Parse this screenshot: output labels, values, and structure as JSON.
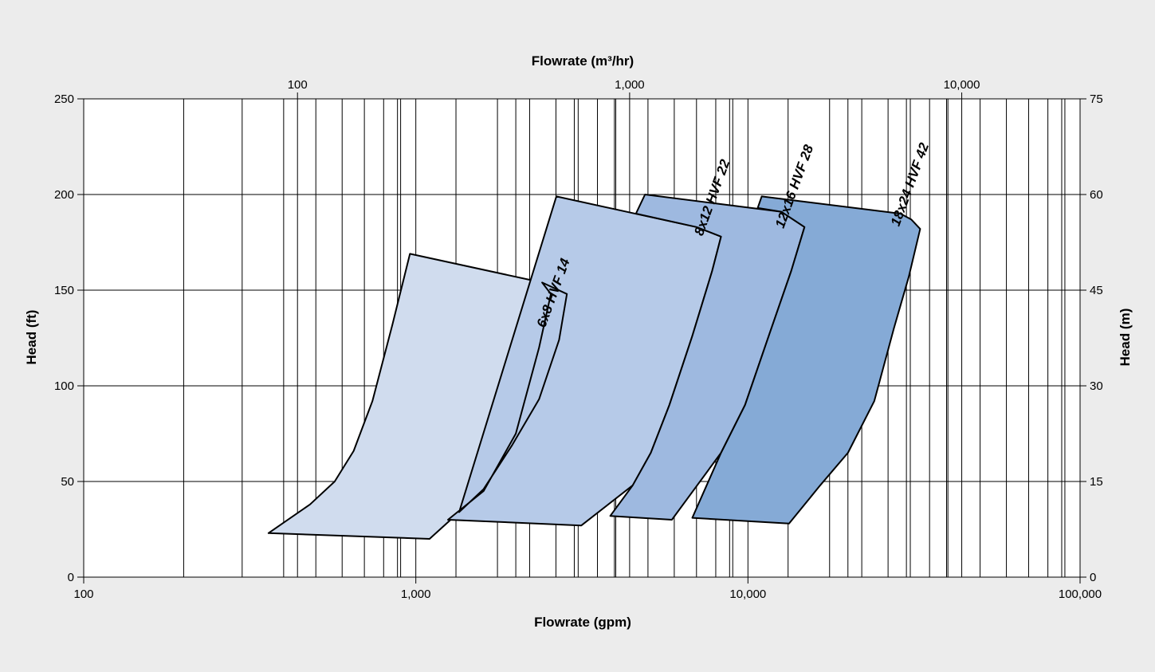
{
  "colors": {
    "background": "#ececec",
    "plot_background": "#ffffff",
    "grid": "#000000",
    "series_fills": [
      "#d0dcee",
      "#b6cae8",
      "#9eb9e0",
      "#85aad6"
    ]
  },
  "chart_data": {
    "type": "area",
    "xscale": "log",
    "xlim": [
      100,
      100000
    ],
    "ylim": [
      0,
      250
    ],
    "grid": true,
    "xlabel": "Flowrate (gpm)",
    "x2label": "Flowrate (m³/hr)",
    "ylabel": "Head (ft)",
    "y2label": "Head (m)",
    "xticks": [
      {
        "value": 100,
        "label": "100"
      },
      {
        "value": 1000,
        "label": "1,000"
      },
      {
        "value": 10000,
        "label": "10,000"
      },
      {
        "value": 100000,
        "label": "100,000"
      }
    ],
    "x2ticks": [
      {
        "value": 100,
        "label": "100"
      },
      {
        "value": 1000,
        "label": "1,000"
      },
      {
        "value": 10000,
        "label": "10,000"
      }
    ],
    "yticks": [
      {
        "value": 0,
        "label": "0"
      },
      {
        "value": 50,
        "label": "50"
      },
      {
        "value": 100,
        "label": "100"
      },
      {
        "value": 150,
        "label": "150"
      },
      {
        "value": 200,
        "label": "200"
      },
      {
        "value": 250,
        "label": "250"
      }
    ],
    "y2ticks": [
      {
        "value": 0,
        "label": "0"
      },
      {
        "value": 15,
        "label": "15"
      },
      {
        "value": 30,
        "label": "30"
      },
      {
        "value": 45,
        "label": "45"
      },
      {
        "value": 60,
        "label": "60"
      },
      {
        "value": 75,
        "label": "75"
      }
    ],
    "series": [
      {
        "name": "6x8 HVF 14",
        "label_at": {
          "x": 2450,
          "y": 130
        },
        "outline": [
          [
            960,
            169
          ],
          [
            2400,
            154
          ],
          [
            2850,
            148
          ],
          [
            2700,
            124
          ],
          [
            2350,
            93
          ],
          [
            1950,
            69
          ],
          [
            1600,
            46
          ],
          [
            1350,
            34
          ],
          [
            1100,
            20
          ],
          [
            360,
            23
          ],
          [
            480,
            38
          ],
          [
            570,
            50
          ],
          [
            650,
            66
          ],
          [
            740,
            92
          ],
          [
            850,
            132
          ]
        ]
      },
      {
        "name": "8x12 HVF 22",
        "label_at": {
          "x": 7300,
          "y": 178
        },
        "outline": [
          [
            2650,
            199
          ],
          [
            7000,
            183
          ],
          [
            8300,
            178
          ],
          [
            7800,
            160
          ],
          [
            6800,
            126
          ],
          [
            5800,
            90
          ],
          [
            5100,
            65
          ],
          [
            4500,
            48
          ],
          [
            3150,
            27
          ],
          [
            1250,
            30
          ],
          [
            1600,
            45
          ],
          [
            2000,
            75
          ],
          [
            2350,
            120
          ],
          [
            2550,
            148
          ],
          [
            2400,
            154
          ],
          [
            2850,
            148
          ],
          [
            2700,
            124
          ],
          [
            2350,
            93
          ],
          [
            1950,
            69
          ],
          [
            1600,
            46
          ],
          [
            1350,
            34
          ]
        ]
      },
      {
        "name": "12x16 HVF 28",
        "label_at": {
          "x": 12800,
          "y": 182
        },
        "outline": [
          [
            4900,
            200
          ],
          [
            12600,
            191
          ],
          [
            14800,
            183
          ],
          [
            13500,
            160
          ],
          [
            11600,
            127
          ],
          [
            9800,
            90
          ],
          [
            8300,
            65
          ],
          [
            5900,
            30
          ],
          [
            3850,
            32
          ],
          [
            4500,
            48
          ],
          [
            5100,
            65
          ],
          [
            5800,
            90
          ],
          [
            6800,
            126
          ],
          [
            7800,
            160
          ],
          [
            8300,
            178
          ],
          [
            7000,
            183
          ],
          [
            4600,
            190
          ]
        ]
      },
      {
        "name": "18x24 HVF 42",
        "label_at": {
          "x": 28500,
          "y": 183
        },
        "outline": [
          [
            11000,
            199
          ],
          [
            28800,
            190
          ],
          [
            31000,
            187
          ],
          [
            33000,
            182
          ],
          [
            30500,
            157
          ],
          [
            27500,
            130
          ],
          [
            24000,
            92
          ],
          [
            20000,
            65
          ],
          [
            16500,
            48
          ],
          [
            13300,
            28
          ],
          [
            6800,
            31
          ],
          [
            8300,
            65
          ],
          [
            9800,
            90
          ],
          [
            11600,
            127
          ],
          [
            13500,
            160
          ],
          [
            14800,
            183
          ],
          [
            12600,
            191
          ],
          [
            10700,
            193
          ]
        ]
      }
    ]
  }
}
